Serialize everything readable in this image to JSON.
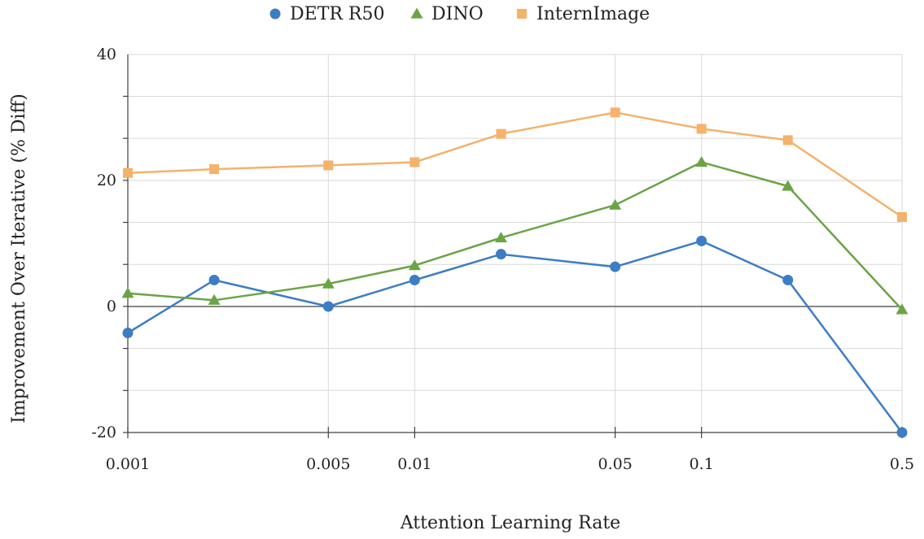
{
  "chart_data": {
    "type": "line",
    "title": "",
    "xlabel": "Attention Learning Rate",
    "ylabel": "Improvement Over Iterative (% Diff)",
    "xscale": "log",
    "x": [
      0.001,
      0.002,
      0.005,
      0.01,
      0.02,
      0.05,
      0.1,
      0.2,
      0.5
    ],
    "x_tick_values": [
      0.001,
      0.005,
      0.01,
      0.05,
      0.1,
      0.5
    ],
    "x_tick_labels": [
      "0.001",
      "0.005",
      "0.01",
      "0.05",
      "0.1",
      "0.5"
    ],
    "ylim": [
      -20,
      40
    ],
    "y_tick_values": [
      -20,
      0,
      20,
      40
    ],
    "y_tick_labels": [
      "-20",
      "0",
      "20",
      "40"
    ],
    "y_minor_step": 6.67,
    "legend_position": "top-center",
    "grid": true,
    "series": [
      {
        "name": "DETR R50",
        "marker": "circle",
        "color": "#3d7dc4",
        "values": [
          -4.2,
          4.2,
          0.0,
          4.2,
          8.3,
          6.3,
          10.4,
          4.2,
          -20.0
        ]
      },
      {
        "name": "DINO",
        "marker": "triangle",
        "color": "#6ba446",
        "values": [
          2.1,
          1.0,
          3.6,
          6.5,
          10.9,
          16.1,
          22.9,
          19.1,
          -0.5
        ]
      },
      {
        "name": "InternImage",
        "marker": "square",
        "color": "#f4b26b",
        "values": [
          21.2,
          21.8,
          22.4,
          22.9,
          27.4,
          30.8,
          28.2,
          26.4,
          14.2
        ]
      }
    ]
  }
}
